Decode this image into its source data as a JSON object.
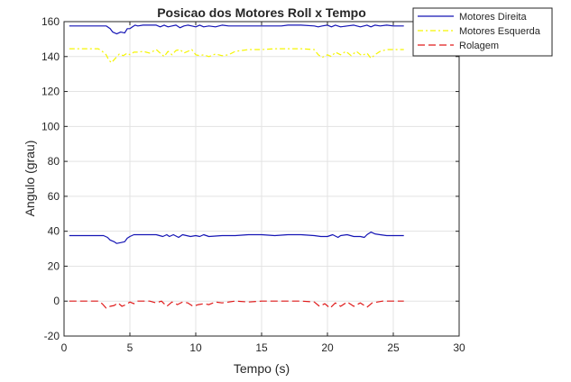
{
  "chart_data": {
    "type": "line",
    "title": "Posicao dos Motores Roll x Tempo",
    "xlabel": "Tempo (s)",
    "ylabel": "Angulo (grau)",
    "xlim": [
      0,
      30
    ],
    "ylim": [
      -20,
      160
    ],
    "xticks": [
      0,
      5,
      10,
      15,
      20,
      25,
      30
    ],
    "yticks": [
      -20,
      0,
      20,
      40,
      60,
      80,
      100,
      120,
      140,
      160
    ],
    "grid": true,
    "legend": "top-right",
    "series": [
      {
        "name": "Motores Direita",
        "color": "#1515b5",
        "style": "solid",
        "lines": [
          {
            "x": [
              0.4,
              3.2,
              3.5,
              3.7,
              4.0,
              4.3,
              4.6,
              4.8,
              5.0,
              5.2,
              5.4,
              5.6,
              6.0,
              7.0,
              7.3,
              7.6,
              7.9,
              8.2,
              8.5,
              8.8,
              9.1,
              9.4,
              9.7,
              10.0,
              10.3,
              10.6,
              11.0,
              11.5,
              12.0,
              12.5,
              13.0,
              14.0,
              15.0,
              16.0,
              16.5,
              17.0,
              18.0,
              19.0,
              19.3,
              19.6,
              20.0,
              20.3,
              20.6,
              21.0,
              21.5,
              22.0,
              22.5,
              23.0,
              23.3,
              23.6,
              24.0,
              24.5,
              25.0,
              25.8
            ],
            "y": [
              157.5,
              157.5,
              156.0,
              154.0,
              153.0,
              154.0,
              153.5,
              156.0,
              156.0,
              157.0,
              158.0,
              157.5,
              158.0,
              158.0,
              157.0,
              158.0,
              157.0,
              157.5,
              158.0,
              156.5,
              157.5,
              158.0,
              157.5,
              157.0,
              158.0,
              157.0,
              157.5,
              157.0,
              158.0,
              157.5,
              157.5,
              157.5,
              157.5,
              157.5,
              157.5,
              158.0,
              158.0,
              157.5,
              157.0,
              157.5,
              158.0,
              157.0,
              158.0,
              157.0,
              157.5,
              158.0,
              157.0,
              158.0,
              157.0,
              158.0,
              157.5,
              158.0,
              157.5,
              157.5
            ]
          },
          {
            "x": [
              0.4,
              3.0,
              3.3,
              3.5,
              3.8,
              4.0,
              4.3,
              4.6,
              4.8,
              5.0,
              5.3,
              5.6,
              6.0,
              7.0,
              7.5,
              7.8,
              8.0,
              8.3,
              8.7,
              9.0,
              9.3,
              9.6,
              10.0,
              10.3,
              10.6,
              11.0,
              12.0,
              13.0,
              14.0,
              15.0,
              16.0,
              17.0,
              18.0,
              19.0,
              19.5,
              20.0,
              20.4,
              20.8,
              21.0,
              21.5,
              22.0,
              22.5,
              22.8,
              23.0,
              23.3,
              23.6,
              24.0,
              24.5,
              25.0,
              25.8
            ],
            "y": [
              37.5,
              37.5,
              36.5,
              35.0,
              34.0,
              33.0,
              33.5,
              34.0,
              36.0,
              37.0,
              38.0,
              38.0,
              38.0,
              38.0,
              37.0,
              38.0,
              37.0,
              38.0,
              36.5,
              38.0,
              37.5,
              37.0,
              37.5,
              37.0,
              38.0,
              37.0,
              37.5,
              37.5,
              38.0,
              38.0,
              37.5,
              38.0,
              38.0,
              37.5,
              37.0,
              37.0,
              38.0,
              36.5,
              37.5,
              38.0,
              37.0,
              37.0,
              36.5,
              38.0,
              39.5,
              38.5,
              38.0,
              37.5,
              37.5,
              37.5
            ]
          }
        ]
      },
      {
        "name": "Motores Esquerda",
        "color": "#f5f500",
        "style": "dashdot",
        "lines": [
          {
            "x": [
              0.4,
              2.6,
              2.9,
              3.2,
              3.4,
              3.6,
              3.9,
              4.2,
              4.5,
              4.8,
              5.0,
              5.3,
              5.6,
              6.0,
              6.5,
              7.0,
              7.3,
              7.6,
              7.9,
              8.2,
              8.5,
              8.8,
              9.1,
              9.4,
              9.7,
              10.0,
              10.3,
              10.6,
              11.0,
              11.5,
              12.0,
              12.5,
              13.0,
              14.0,
              15.0,
              16.0,
              17.0,
              18.0,
              19.0,
              19.3,
              19.6,
              20.0,
              20.3,
              20.6,
              21.0,
              21.4,
              21.8,
              22.2,
              22.6,
              23.0,
              23.3,
              23.6,
              24.0,
              24.5,
              25.0,
              25.8
            ],
            "y": [
              144.5,
              144.5,
              143.0,
              141.0,
              138.0,
              136.5,
              139.0,
              141.5,
              140.5,
              142.0,
              141.0,
              142.5,
              142.5,
              143.0,
              142.0,
              144.0,
              142.0,
              140.0,
              143.0,
              141.0,
              143.5,
              144.0,
              142.0,
              143.0,
              144.0,
              141.0,
              140.5,
              141.0,
              140.0,
              141.5,
              140.5,
              141.0,
              143.0,
              144.0,
              144.0,
              144.5,
              144.5,
              144.5,
              144.0,
              141.0,
              139.5,
              141.0,
              140.0,
              142.5,
              141.0,
              143.0,
              140.5,
              143.0,
              140.5,
              142.0,
              139.0,
              141.0,
              143.0,
              144.0,
              144.0,
              144.0
            ]
          }
        ]
      },
      {
        "name": "Rolagem",
        "color": "#e01a1a",
        "style": "dashed",
        "lines": [
          {
            "x": [
              0.4,
              2.6,
              2.9,
              3.2,
              3.5,
              3.8,
              4.1,
              4.4,
              4.7,
              5.0,
              5.3,
              5.6,
              6.0,
              6.5,
              7.0,
              7.4,
              7.8,
              8.2,
              8.6,
              9.0,
              9.4,
              9.8,
              10.2,
              10.6,
              11.0,
              11.5,
              12.0,
              13.0,
              14.0,
              15.0,
              16.0,
              17.0,
              18.0,
              19.0,
              19.4,
              19.8,
              20.2,
              20.6,
              21.0,
              21.5,
              22.0,
              22.5,
              23.0,
              23.4,
              23.8,
              24.2,
              25.0,
              25.8
            ],
            "y": [
              0,
              0,
              -1.5,
              -4.0,
              -3.0,
              -2.5,
              -1.0,
              -3.0,
              -2.0,
              -0.5,
              -1.5,
              0,
              0,
              0,
              -1.0,
              0,
              -3.0,
              -0.5,
              -2.0,
              -0.5,
              -1.0,
              -3.0,
              -2.0,
              -1.5,
              -2.0,
              -0.5,
              -1.0,
              0,
              -0.5,
              0,
              0,
              0,
              0,
              -0.5,
              -3.0,
              -1.5,
              -4.0,
              -1.0,
              -3.0,
              -0.5,
              -3.0,
              -1.0,
              -3.5,
              -1.0,
              -0.5,
              0,
              0,
              0
            ]
          }
        ]
      }
    ]
  }
}
